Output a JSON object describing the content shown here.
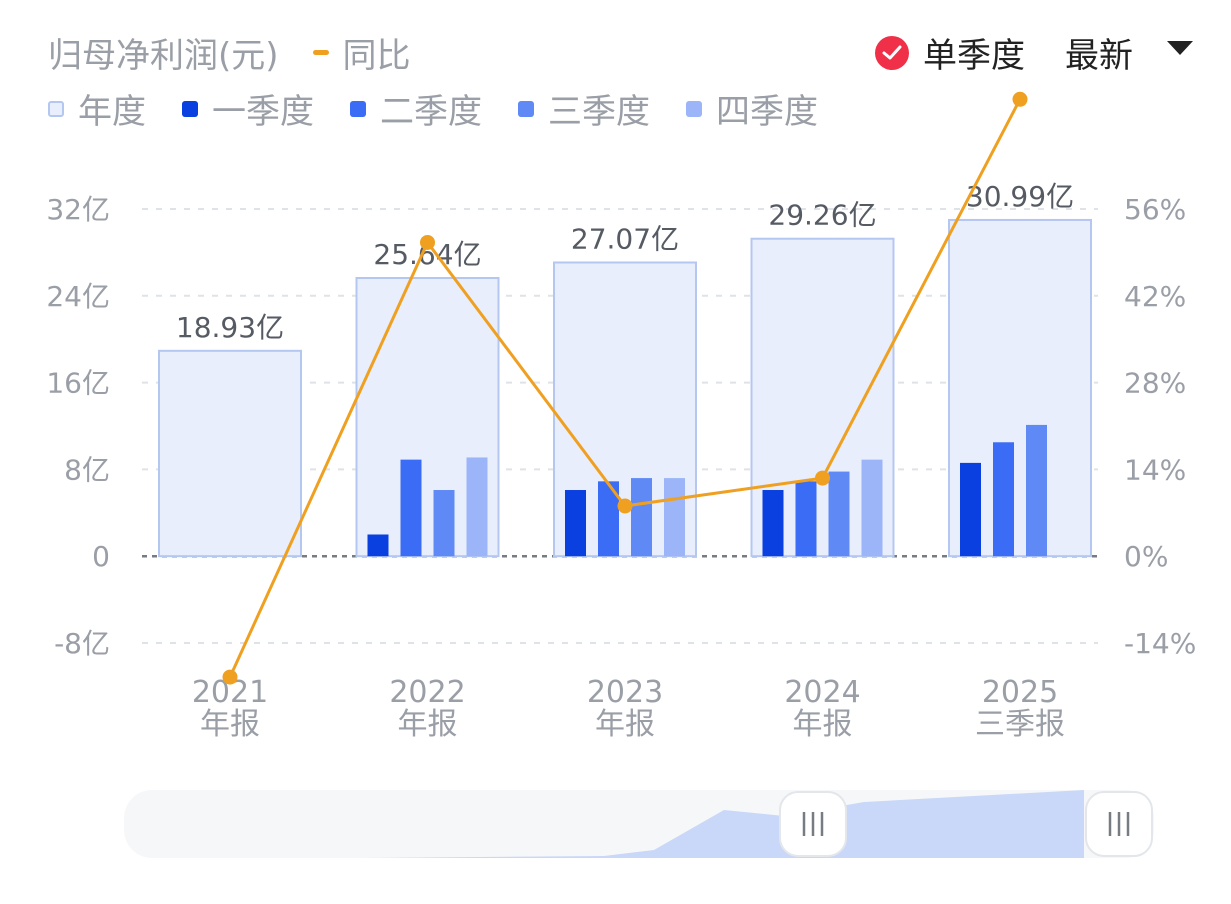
{
  "header": {
    "title": "归母净利润(元)",
    "yoy_label": "同比",
    "single_quarter_label": "单季度",
    "latest_label": "最新"
  },
  "legend": [
    {
      "label": "年度",
      "icon": "annual-swatch"
    },
    {
      "label": "一季度",
      "icon": "q1-swatch"
    },
    {
      "label": "二季度",
      "icon": "q2-swatch"
    },
    {
      "label": "三季度",
      "icon": "q3-swatch"
    },
    {
      "label": "四季度",
      "icon": "q4-swatch"
    }
  ],
  "colors": {
    "annual_fill": "#e8eefc",
    "annual_stroke": "#b4c7f1",
    "q1": "#0a3fe0",
    "q2": "#3a6cf5",
    "q3": "#5f89f4",
    "q4": "#9bb5f8",
    "yoy": "#f0a020",
    "check": "#f03048",
    "slider_fill": "#c9d8f8"
  },
  "chart_data": {
    "type": "bar",
    "categories": [
      {
        "year": "2021",
        "period": "年报"
      },
      {
        "year": "2022",
        "period": "年报"
      },
      {
        "year": "2023",
        "period": "年报"
      },
      {
        "year": "2024",
        "period": "年报"
      },
      {
        "year": "2025",
        "period": "三季报"
      }
    ],
    "annual": [
      18.93,
      25.64,
      27.07,
      29.26,
      30.99
    ],
    "annual_labels": [
      "18.93亿",
      "25.64亿",
      "27.07亿",
      "29.26亿",
      "30.99亿"
    ],
    "quarters": [
      [
        null,
        null,
        null,
        null
      ],
      [
        2.0,
        8.9,
        6.1,
        9.1
      ],
      [
        6.1,
        6.9,
        7.2,
        7.2
      ],
      [
        6.1,
        6.9,
        7.8,
        8.9
      ],
      [
        8.6,
        10.5,
        12.1,
        null
      ]
    ],
    "yoy_percent": [
      -19.5,
      50.6,
      8.1,
      12.6,
      73.7
    ],
    "ylim_left": [
      -8,
      32
    ],
    "left_ticks": [
      "32亿",
      "24亿",
      "16亿",
      "8亿",
      "0",
      "-8亿"
    ],
    "left_tick_values": [
      32,
      24,
      16,
      8,
      0,
      -8
    ],
    "ylim_right": [
      -14,
      56
    ],
    "right_ticks": [
      "56%",
      "42%",
      "28%",
      "14%",
      "0%",
      "-14%"
    ],
    "right_tick_values": [
      56,
      42,
      28,
      14,
      0,
      -14
    ],
    "grid": true
  }
}
